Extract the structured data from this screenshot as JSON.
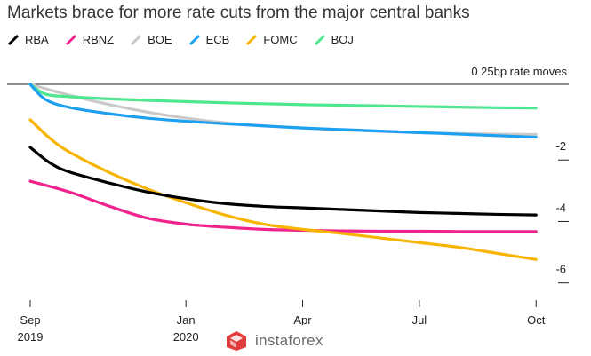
{
  "chart_data": {
    "type": "line",
    "title": "Markets brace for more rate cuts from the major central banks",
    "y_unit_label": "0 25bp rate moves",
    "x_ticks": [
      {
        "t": 0,
        "label": "Sep",
        "sub": "2019"
      },
      {
        "t": 4,
        "label": "Jan",
        "sub": "2020"
      },
      {
        "t": 7,
        "label": "Apr",
        "sub": ""
      },
      {
        "t": 10,
        "label": "Jul",
        "sub": ""
      },
      {
        "t": 13,
        "label": "Oct",
        "sub": ""
      }
    ],
    "y_ticks": [
      {
        "v": -2,
        "label": "-2"
      },
      {
        "v": -4,
        "label": "-4"
      },
      {
        "v": -6,
        "label": "-6"
      }
    ],
    "xlim": [
      0,
      13.2
    ],
    "ylim": [
      0,
      -6.5
    ],
    "series": [
      {
        "name": "RBA",
        "color": "#000000",
        "points": [
          [
            0,
            -2.05
          ],
          [
            0.5,
            -2.55
          ],
          [
            1,
            -2.85
          ],
          [
            2,
            -3.2
          ],
          [
            3,
            -3.5
          ],
          [
            4,
            -3.72
          ],
          [
            5,
            -3.88
          ],
          [
            6,
            -3.97
          ],
          [
            7,
            -4.02
          ],
          [
            8,
            -4.07
          ],
          [
            9,
            -4.12
          ],
          [
            10,
            -4.17
          ],
          [
            11,
            -4.2
          ],
          [
            12,
            -4.23
          ],
          [
            13,
            -4.25
          ]
        ]
      },
      {
        "name": "RBNZ",
        "color": "#f0238c",
        "points": [
          [
            0,
            -3.15
          ],
          [
            1,
            -3.5
          ],
          [
            2,
            -3.95
          ],
          [
            3,
            -4.35
          ],
          [
            4,
            -4.55
          ],
          [
            5,
            -4.65
          ],
          [
            6,
            -4.72
          ],
          [
            7,
            -4.75
          ],
          [
            8,
            -4.77
          ],
          [
            9,
            -4.78
          ],
          [
            10,
            -4.78
          ],
          [
            11,
            -4.79
          ],
          [
            12,
            -4.79
          ],
          [
            13,
            -4.79
          ]
        ]
      },
      {
        "name": "BOE",
        "color": "#c9c9c9",
        "points": [
          [
            0,
            0
          ],
          [
            1,
            -0.35
          ],
          [
            2,
            -0.65
          ],
          [
            3,
            -0.9
          ],
          [
            4,
            -1.1
          ],
          [
            5,
            -1.25
          ],
          [
            6,
            -1.35
          ],
          [
            7,
            -1.42
          ],
          [
            8,
            -1.48
          ],
          [
            9,
            -1.53
          ],
          [
            10,
            -1.57
          ],
          [
            11,
            -1.6
          ],
          [
            12,
            -1.62
          ],
          [
            13,
            -1.63
          ]
        ]
      },
      {
        "name": "ECB",
        "color": "#1ea0f0",
        "points": [
          [
            0,
            0
          ],
          [
            0.4,
            -0.5
          ],
          [
            1,
            -0.75
          ],
          [
            2,
            -0.95
          ],
          [
            3,
            -1.1
          ],
          [
            4,
            -1.2
          ],
          [
            5,
            -1.28
          ],
          [
            6,
            -1.35
          ],
          [
            7,
            -1.42
          ],
          [
            8,
            -1.47
          ],
          [
            9,
            -1.52
          ],
          [
            10,
            -1.57
          ],
          [
            11,
            -1.62
          ],
          [
            12,
            -1.67
          ],
          [
            13,
            -1.72
          ]
        ]
      },
      {
        "name": "FOMC",
        "color": "#f7b500",
        "points": [
          [
            0,
            -1.15
          ],
          [
            0.5,
            -1.75
          ],
          [
            1,
            -2.2
          ],
          [
            2,
            -2.85
          ],
          [
            3,
            -3.4
          ],
          [
            4,
            -3.85
          ],
          [
            5,
            -4.25
          ],
          [
            6,
            -4.55
          ],
          [
            7,
            -4.72
          ],
          [
            8,
            -4.85
          ],
          [
            9,
            -5.0
          ],
          [
            10,
            -5.15
          ],
          [
            11,
            -5.3
          ],
          [
            12,
            -5.5
          ],
          [
            13,
            -5.7
          ]
        ]
      },
      {
        "name": "BOJ",
        "color": "#4ee68f",
        "points": [
          [
            0,
            0
          ],
          [
            0.4,
            -0.32
          ],
          [
            1,
            -0.4
          ],
          [
            2,
            -0.47
          ],
          [
            3,
            -0.52
          ],
          [
            4,
            -0.56
          ],
          [
            5,
            -0.6
          ],
          [
            6,
            -0.63
          ],
          [
            7,
            -0.66
          ],
          [
            8,
            -0.68
          ],
          [
            9,
            -0.7
          ],
          [
            10,
            -0.72
          ],
          [
            11,
            -0.74
          ],
          [
            12,
            -0.76
          ],
          [
            13,
            -0.77
          ]
        ]
      }
    ]
  },
  "watermark": {
    "text": "instaforex"
  }
}
